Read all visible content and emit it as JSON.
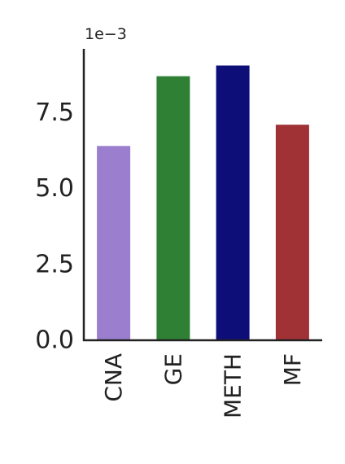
{
  "chart_data": {
    "type": "bar",
    "categories": [
      "CNA",
      "GE",
      "METH",
      "MF"
    ],
    "values": [
      6.4,
      8.7,
      9.05,
      7.1
    ],
    "colors": [
      "#9b7fce",
      "#2f7f34",
      "#0e0e78",
      "#a03236"
    ],
    "axis_color": "#222222",
    "ylim": [
      0,
      9.6
    ],
    "yticks": [
      {
        "value": 0.0,
        "label": "0.0"
      },
      {
        "value": 2.5,
        "label": "2.5"
      },
      {
        "value": 5.0,
        "label": "5.0"
      },
      {
        "value": 7.5,
        "label": "7.5"
      }
    ],
    "y_multiplier_label": "1e−3",
    "grid": false,
    "title": "",
    "xlabel": "",
    "ylabel": ""
  }
}
